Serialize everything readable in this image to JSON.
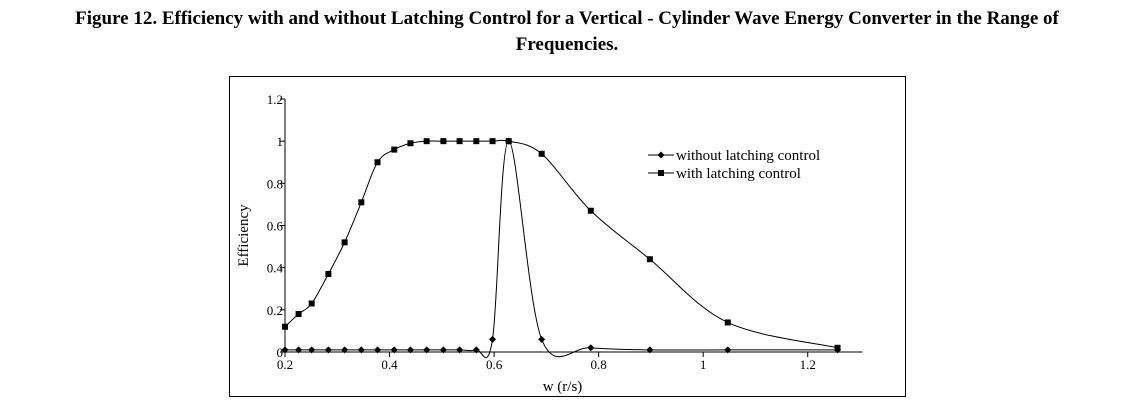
{
  "caption": {
    "line1": "Figure 12. Efficiency with and without Latching Control for a Vertical - Cylinder Wave Energy Converter in the Range of",
    "line2": "Frequencies."
  },
  "chart_data": {
    "type": "line",
    "title": "",
    "xlabel": "w (r/s)",
    "ylabel": "Efficiency",
    "xlim": [
      0.2,
      1.3
    ],
    "ylim": [
      0,
      1.2
    ],
    "xticks": [
      0.2,
      0.4,
      0.6,
      0.8,
      1,
      1.2
    ],
    "xtick_labels": [
      "0.2",
      "0.4",
      "0.6",
      "0.8",
      "1",
      "1.2"
    ],
    "yticks": [
      0,
      0.2,
      0.4,
      0.6,
      0.8,
      1,
      1.2
    ],
    "ytick_labels": [
      "0",
      "0.2",
      "0.4",
      "0.6",
      "0.8",
      "1",
      "1.2"
    ],
    "grid": false,
    "legend": "top-right",
    "series": [
      {
        "name": "without latching control",
        "marker": "diamond",
        "color": "#000000",
        "x": [
          0.2,
          0.226,
          0.251,
          0.283,
          0.314,
          0.346,
          0.377,
          0.409,
          0.44,
          0.471,
          0.503,
          0.534,
          0.566,
          0.597,
          0.628,
          0.691,
          0.785,
          0.898,
          1.047,
          1.257
        ],
        "y": [
          0.01,
          0.01,
          0.01,
          0.01,
          0.01,
          0.01,
          0.01,
          0.01,
          0.01,
          0.01,
          0.01,
          0.01,
          0.01,
          0.06,
          1.0,
          0.06,
          0.02,
          0.01,
          0.01,
          0.01
        ]
      },
      {
        "name": "with latching control",
        "marker": "square",
        "color": "#000000",
        "x": [
          0.2,
          0.226,
          0.251,
          0.283,
          0.314,
          0.346,
          0.377,
          0.409,
          0.44,
          0.471,
          0.503,
          0.534,
          0.566,
          0.597,
          0.628,
          0.691,
          0.785,
          0.898,
          1.047,
          1.257
        ],
        "y": [
          0.12,
          0.18,
          0.23,
          0.37,
          0.52,
          0.71,
          0.9,
          0.96,
          0.99,
          1.0,
          1.0,
          1.0,
          1.0,
          1.0,
          1.0,
          0.94,
          0.67,
          0.44,
          0.14,
          0.02
        ]
      }
    ]
  }
}
